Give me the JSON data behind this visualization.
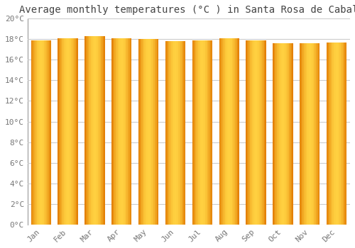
{
  "title": "Average monthly temperatures (°C ) in Santa Rosa de Cabal",
  "months": [
    "Jan",
    "Feb",
    "Mar",
    "Apr",
    "May",
    "Jun",
    "Jul",
    "Aug",
    "Sep",
    "Oct",
    "Nov",
    "Dec"
  ],
  "values": [
    17.9,
    18.1,
    18.3,
    18.1,
    18.0,
    17.8,
    17.9,
    18.1,
    17.9,
    17.6,
    17.6,
    17.7
  ],
  "bar_color_edge": "#E07800",
  "bar_color_mid": "#FFD040",
  "ylim": [
    0,
    20
  ],
  "yticks": [
    0,
    2,
    4,
    6,
    8,
    10,
    12,
    14,
    16,
    18,
    20
  ],
  "ytick_labels": [
    "0°C",
    "2°C",
    "4°C",
    "6°C",
    "8°C",
    "10°C",
    "12°C",
    "14°C",
    "16°C",
    "18°C",
    "20°C"
  ],
  "background_color": "#FFFFFF",
  "grid_color": "#CCCCCC",
  "title_fontsize": 10,
  "tick_fontsize": 8,
  "font_color": "#777777",
  "bar_width": 0.75
}
